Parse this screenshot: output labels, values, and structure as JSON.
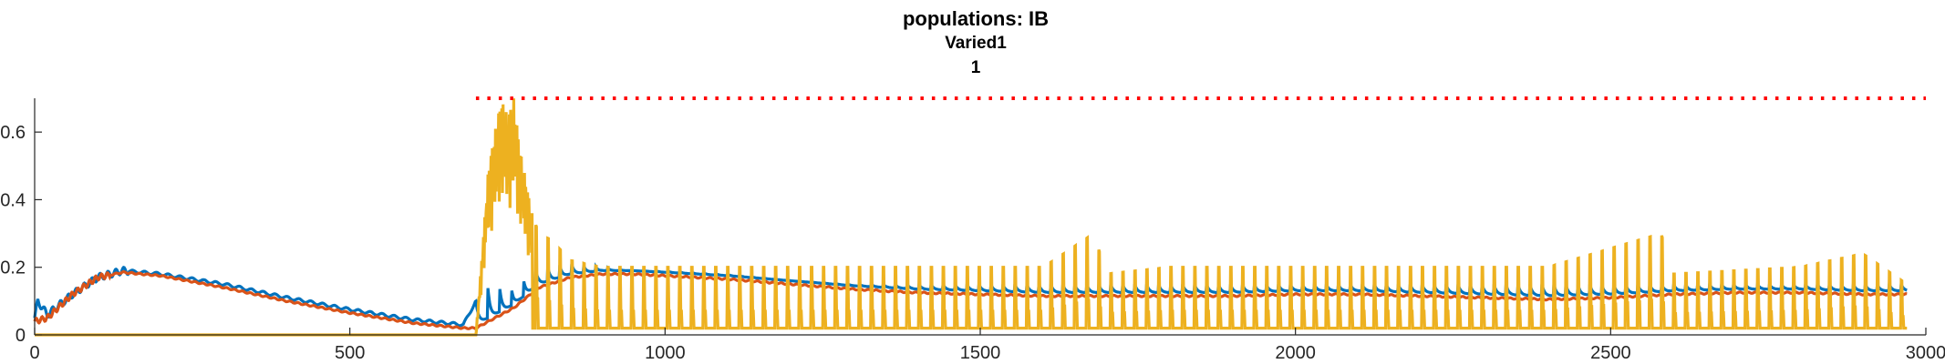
{
  "chart_data": {
    "type": "line",
    "title": "populations: IB",
    "subtitle_lines": [
      "Varied1",
      "1"
    ],
    "xlabel": "",
    "ylabel": "",
    "xlim": [
      0,
      3000
    ],
    "ylim": [
      0,
      0.7
    ],
    "x_ticks": [
      0,
      500,
      1000,
      1500,
      2000,
      2500,
      3000
    ],
    "x_tick_labels": [
      "0",
      "500",
      "1000",
      "1500",
      "2000",
      "2500",
      "3000"
    ],
    "y_ticks": [
      0,
      0.2,
      0.4,
      0.6
    ],
    "y_tick_labels": [
      "0",
      "0.2",
      "0.4",
      "0.6"
    ],
    "grid": false,
    "legend": "none",
    "colors": {
      "blue": "#0072BD",
      "orange": "#D95319",
      "yellow": "#EDB120",
      "red_dotted": "#FF0000",
      "axis": "#262626"
    },
    "series": [
      {
        "color": "#0072BD",
        "x": [
          0,
          5,
          20,
          60,
          100,
          140,
          200,
          300,
          400,
          500,
          600,
          680,
          700,
          720,
          760,
          800,
          850,
          900,
          950,
          1000,
          1100,
          1200,
          1300,
          1400,
          1500,
          1600,
          1700,
          1800,
          1900,
          2000,
          2100,
          2200,
          2300,
          2400,
          2500,
          2600,
          2700,
          2800,
          2900,
          2970
        ],
        "values": [
          0.05,
          0.1,
          0.06,
          0.12,
          0.17,
          0.19,
          0.18,
          0.15,
          0.11,
          0.075,
          0.045,
          0.03,
          0.1,
          0.14,
          0.13,
          0.2,
          0.21,
          0.2,
          0.19,
          0.19,
          0.18,
          0.16,
          0.15,
          0.15,
          0.15,
          0.15,
          0.15,
          0.15,
          0.15,
          0.15,
          0.15,
          0.15,
          0.15,
          0.15,
          0.15,
          0.15,
          0.15,
          0.15,
          0.15,
          0.15
        ],
        "pulse_peak_max": 0.24,
        "pulse_interval": 19
      },
      {
        "color": "#D95319",
        "x": [
          0,
          20,
          60,
          100,
          140,
          200,
          300,
          400,
          500,
          600,
          680,
          700,
          720,
          760,
          800,
          850,
          900,
          950,
          1000,
          1100,
          1200,
          1300,
          1400,
          1500,
          1600,
          1700,
          1800,
          1900,
          2000,
          2100,
          2200,
          2300,
          2400,
          2500,
          2600,
          2700,
          2800,
          2900,
          2970
        ],
        "values": [
          0.04,
          0.05,
          0.12,
          0.17,
          0.185,
          0.175,
          0.14,
          0.1,
          0.065,
          0.035,
          0.02,
          0.02,
          0.04,
          0.08,
          0.14,
          0.17,
          0.18,
          0.18,
          0.175,
          0.165,
          0.15,
          0.135,
          0.125,
          0.12,
          0.115,
          0.115,
          0.115,
          0.115,
          0.12,
          0.12,
          0.115,
          0.11,
          0.105,
          0.11,
          0.12,
          0.125,
          0.125,
          0.12,
          0.12
        ]
      },
      {
        "color": "#EDB120",
        "x": [
          0,
          700,
          710,
          720,
          730,
          740,
          750,
          760,
          770,
          780,
          790,
          800,
          820,
          850,
          900,
          950,
          1000,
          1200,
          1400,
          1600,
          1680,
          1700,
          1800,
          2000,
          2200,
          2400,
          2580,
          2600,
          2800,
          2900,
          2970
        ],
        "values": [
          0,
          0,
          0.25,
          0.5,
          0.6,
          0.7,
          0.65,
          0.7,
          0.55,
          0.45,
          0.35,
          0.3,
          0.28,
          0.22,
          0.2,
          0.2,
          0.2,
          0.2,
          0.2,
          0.2,
          0.3,
          0.18,
          0.2,
          0.2,
          0.2,
          0.2,
          0.3,
          0.18,
          0.2,
          0.24,
          0.15
        ],
        "pulse_interval": 19
      },
      {
        "color": "#FF0000",
        "style": "dotted",
        "x": [
          700,
          3000
        ],
        "values": [
          0.7,
          0.7
        ]
      }
    ]
  }
}
